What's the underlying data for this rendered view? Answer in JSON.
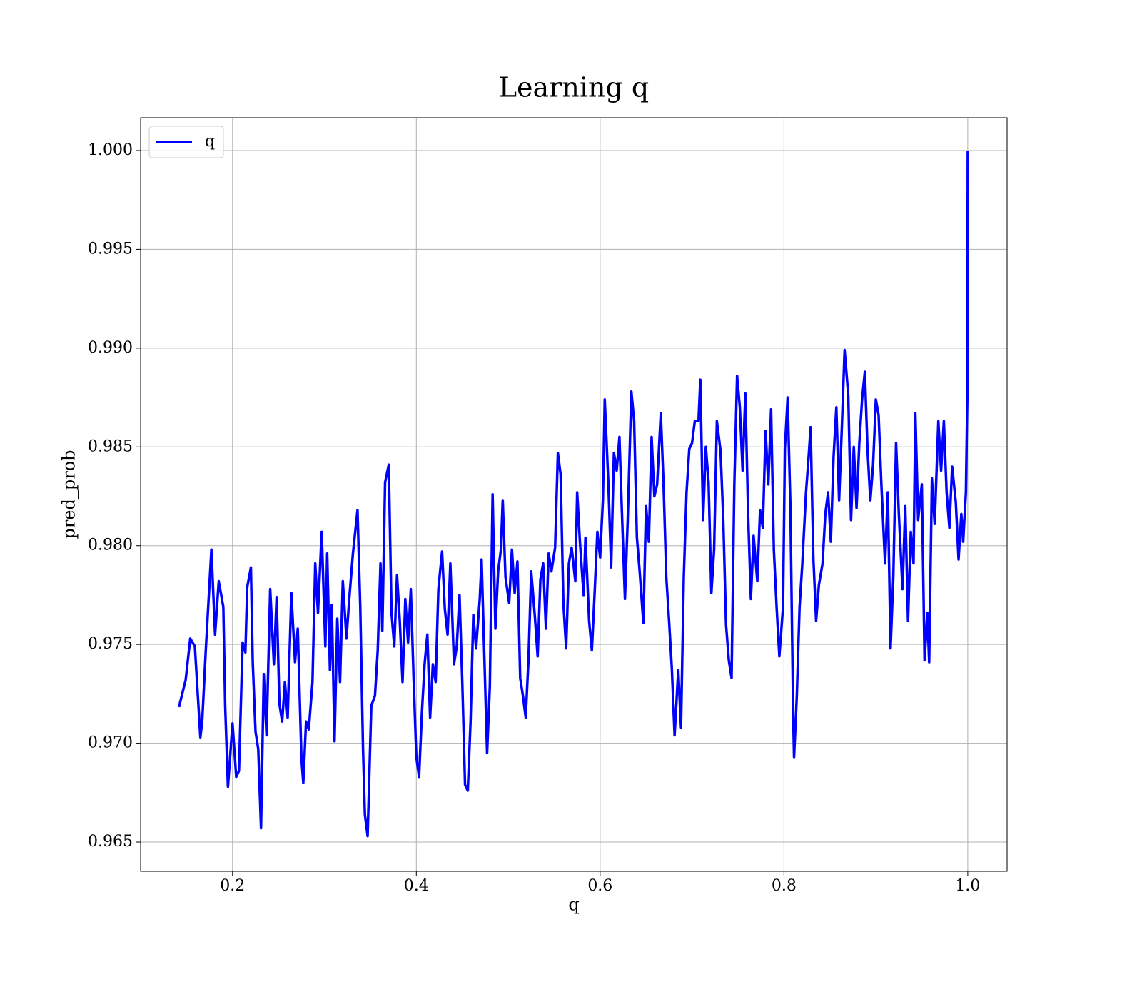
{
  "chart_data": {
    "type": "line",
    "title": "Learning q",
    "xlabel": "q",
    "ylabel": "pred_prob",
    "xlim": [
      0.1,
      1.0428
    ],
    "ylim": [
      0.96352,
      1.00166
    ],
    "xticks": [
      0.2,
      0.4,
      0.6,
      0.8,
      {
        "value": 1.0,
        "label": "1.0"
      }
    ],
    "yticks": [
      {
        "value": 0.965,
        "label": "0.965"
      },
      {
        "value": 0.97,
        "label": "0.970"
      },
      0.975,
      {
        "value": 0.98,
        "label": "0.980"
      },
      0.985,
      {
        "value": 0.99,
        "label": "0.990"
      },
      0.995,
      {
        "value": 1.0,
        "label": "1.000"
      }
    ],
    "grid": true,
    "legend": "upper left",
    "x": [
      0.1417,
      0.149,
      0.154,
      0.159,
      0.165,
      0.167,
      0.171,
      0.177,
      0.181,
      0.185,
      0.19,
      0.192,
      0.195,
      0.2,
      0.204,
      0.207,
      0.211,
      0.214,
      0.216,
      0.22,
      0.222,
      0.225,
      0.228,
      0.231,
      0.234,
      0.237,
      0.241,
      0.245,
      0.248,
      0.251,
      0.254,
      0.257,
      0.26,
      0.264,
      0.268,
      0.271,
      0.275,
      0.277,
      0.28,
      0.283,
      0.287,
      0.29,
      0.293,
      0.297,
      0.301,
      0.303,
      0.306,
      0.308,
      0.311,
      0.314,
      0.317,
      0.32,
      0.324,
      0.327,
      0.331,
      0.336,
      0.339,
      0.342,
      0.344,
      0.347,
      0.351,
      0.355,
      0.358,
      0.361,
      0.363,
      0.366,
      0.37,
      0.373,
      0.376,
      0.379,
      0.382,
      0.385,
      0.388,
      0.391,
      0.394,
      0.397,
      0.4,
      0.403,
      0.406,
      0.409,
      0.412,
      0.415,
      0.418,
      0.421,
      0.424,
      0.428,
      0.431,
      0.434,
      0.437,
      0.441,
      0.444,
      0.447,
      0.45,
      0.453,
      0.456,
      0.459,
      0.462,
      0.465,
      0.469,
      0.471,
      0.474,
      0.477,
      0.48,
      0.483,
      0.486,
      0.489,
      0.492,
      0.494,
      0.497,
      0.501,
      0.504,
      0.507,
      0.51,
      0.513,
      0.516,
      0.519,
      0.522,
      0.525,
      0.529,
      0.532,
      0.535,
      0.538,
      0.541,
      0.544,
      0.547,
      0.551,
      0.554,
      0.557,
      0.56,
      0.563,
      0.566,
      0.569,
      0.573,
      0.575,
      0.578,
      0.582,
      0.584,
      0.588,
      0.591,
      0.594,
      0.597,
      0.6,
      0.603,
      0.605,
      0.609,
      0.612,
      0.615,
      0.618,
      0.621,
      0.624,
      0.627,
      0.63,
      0.634,
      0.637,
      0.64,
      0.643,
      0.647,
      0.65,
      0.653,
      0.656,
      0.659,
      0.662,
      0.666,
      0.669,
      0.672,
      0.675,
      0.678,
      0.681,
      0.685,
      0.688,
      0.691,
      0.694,
      0.697,
      0.7,
      0.703,
      0.707,
      0.709,
      0.712,
      0.715,
      0.718,
      0.721,
      0.724,
      0.727,
      0.731,
      0.734,
      0.737,
      0.74,
      0.743,
      0.746,
      0.749,
      0.752,
      0.755,
      0.758,
      0.761,
      0.764,
      0.767,
      0.771,
      0.774,
      0.777,
      0.78,
      0.783,
      0.786,
      0.789,
      0.792,
      0.795,
      0.799,
      0.801,
      0.804,
      0.807,
      0.81,
      0.811,
      0.814,
      0.817,
      0.82,
      0.824,
      0.827,
      0.829,
      0.832,
      0.835,
      0.838,
      0.842,
      0.845,
      0.848,
      0.851,
      0.854,
      0.857,
      0.86,
      0.863,
      0.866,
      0.87,
      0.873,
      0.876,
      0.879,
      0.882,
      0.885,
      0.888,
      0.891,
      0.894,
      0.897,
      0.9,
      0.903,
      0.906,
      0.91,
      0.913,
      0.916,
      0.919,
      0.922,
      0.925,
      0.929,
      0.932,
      0.935,
      0.938,
      0.941,
      0.943,
      0.946,
      0.95,
      0.953,
      0.956,
      0.958,
      0.961,
      0.964,
      0.968,
      0.971,
      0.974,
      0.977,
      0.98,
      0.983,
      0.987,
      0.99,
      0.993,
      0.995,
      0.998,
      0.9995,
      1.0
    ],
    "series": [
      {
        "name": "q",
        "color": "#0000ff",
        "values": [
          0.97183,
          0.9732,
          0.9753,
          0.9749,
          0.9703,
          0.9711,
          0.9748,
          0.9798,
          0.9755,
          0.9782,
          0.9769,
          0.9719,
          0.9678,
          0.971,
          0.9683,
          0.9686,
          0.9751,
          0.9746,
          0.9779,
          0.9789,
          0.9741,
          0.9706,
          0.9697,
          0.9657,
          0.9735,
          0.9704,
          0.9778,
          0.974,
          0.9774,
          0.972,
          0.9711,
          0.9731,
          0.9713,
          0.9776,
          0.9741,
          0.9758,
          0.9692,
          0.968,
          0.9711,
          0.9707,
          0.9731,
          0.9791,
          0.9766,
          0.9807,
          0.9749,
          0.9796,
          0.9737,
          0.977,
          0.9701,
          0.9763,
          0.9731,
          0.9782,
          0.9753,
          0.9773,
          0.9796,
          0.9818,
          0.9769,
          0.9697,
          0.9664,
          0.9653,
          0.9719,
          0.9724,
          0.9747,
          0.9791,
          0.9757,
          0.9832,
          0.9841,
          0.9766,
          0.9749,
          0.9785,
          0.9762,
          0.9731,
          0.9773,
          0.9751,
          0.9778,
          0.9733,
          0.9693,
          0.9683,
          0.9715,
          0.974,
          0.9755,
          0.9713,
          0.974,
          0.9731,
          0.9778,
          0.9797,
          0.9768,
          0.9755,
          0.9791,
          0.974,
          0.9749,
          0.9775,
          0.9731,
          0.9679,
          0.9676,
          0.9711,
          0.9765,
          0.9748,
          0.9773,
          0.9793,
          0.9744,
          0.9695,
          0.9729,
          0.9826,
          0.9758,
          0.9787,
          0.9798,
          0.9823,
          0.9784,
          0.9771,
          0.9798,
          0.9776,
          0.9792,
          0.9733,
          0.9724,
          0.9713,
          0.9742,
          0.9787,
          0.9764,
          0.9744,
          0.9783,
          0.9791,
          0.9758,
          0.9796,
          0.9787,
          0.9799,
          0.9847,
          0.9836,
          0.9771,
          0.9748,
          0.9791,
          0.9799,
          0.9782,
          0.9827,
          0.9802,
          0.9775,
          0.9804,
          0.9762,
          0.9747,
          0.9776,
          0.9807,
          0.9794,
          0.9823,
          0.9874,
          0.9831,
          0.9789,
          0.9847,
          0.9838,
          0.9855,
          0.9813,
          0.9773,
          0.9813,
          0.9878,
          0.9863,
          0.9804,
          0.9787,
          0.9761,
          0.982,
          0.9802,
          0.9855,
          0.9825,
          0.9831,
          0.9867,
          0.9831,
          0.9784,
          0.9762,
          0.9738,
          0.9704,
          0.9737,
          0.9708,
          0.9784,
          0.9827,
          0.9849,
          0.9852,
          0.9863,
          0.9863,
          0.9884,
          0.9813,
          0.985,
          0.9832,
          0.9776,
          0.9798,
          0.9863,
          0.9848,
          0.9813,
          0.976,
          0.9742,
          0.9733,
          0.9831,
          0.9886,
          0.987,
          0.9838,
          0.9877,
          0.9816,
          0.9773,
          0.9805,
          0.9782,
          0.9818,
          0.9809,
          0.9858,
          0.9831,
          0.9869,
          0.9798,
          0.9769,
          0.9744,
          0.9769,
          0.9849,
          0.9875,
          0.982,
          0.9715,
          0.9693,
          0.9724,
          0.9769,
          0.9791,
          0.9827,
          0.9846,
          0.986,
          0.9794,
          0.9762,
          0.978,
          0.9791,
          0.9816,
          0.9827,
          0.9802,
          0.9845,
          0.987,
          0.9823,
          0.986,
          0.9899,
          0.9876,
          0.9813,
          0.985,
          0.9819,
          0.9852,
          0.9874,
          0.9888,
          0.9848,
          0.9823,
          0.9841,
          0.9874,
          0.9866,
          0.9831,
          0.9791,
          0.9827,
          0.9748,
          0.9784,
          0.9852,
          0.9816,
          0.9778,
          0.982,
          0.9762,
          0.9807,
          0.9791,
          0.9867,
          0.9813,
          0.9831,
          0.9742,
          0.9766,
          0.9741,
          0.9834,
          0.9811,
          0.9863,
          0.9838,
          0.9863,
          0.9827,
          0.9809,
          0.984,
          0.9822,
          0.9793,
          0.9816,
          0.9802,
          0.9827,
          0.9874,
          1.0
        ]
      }
    ]
  }
}
